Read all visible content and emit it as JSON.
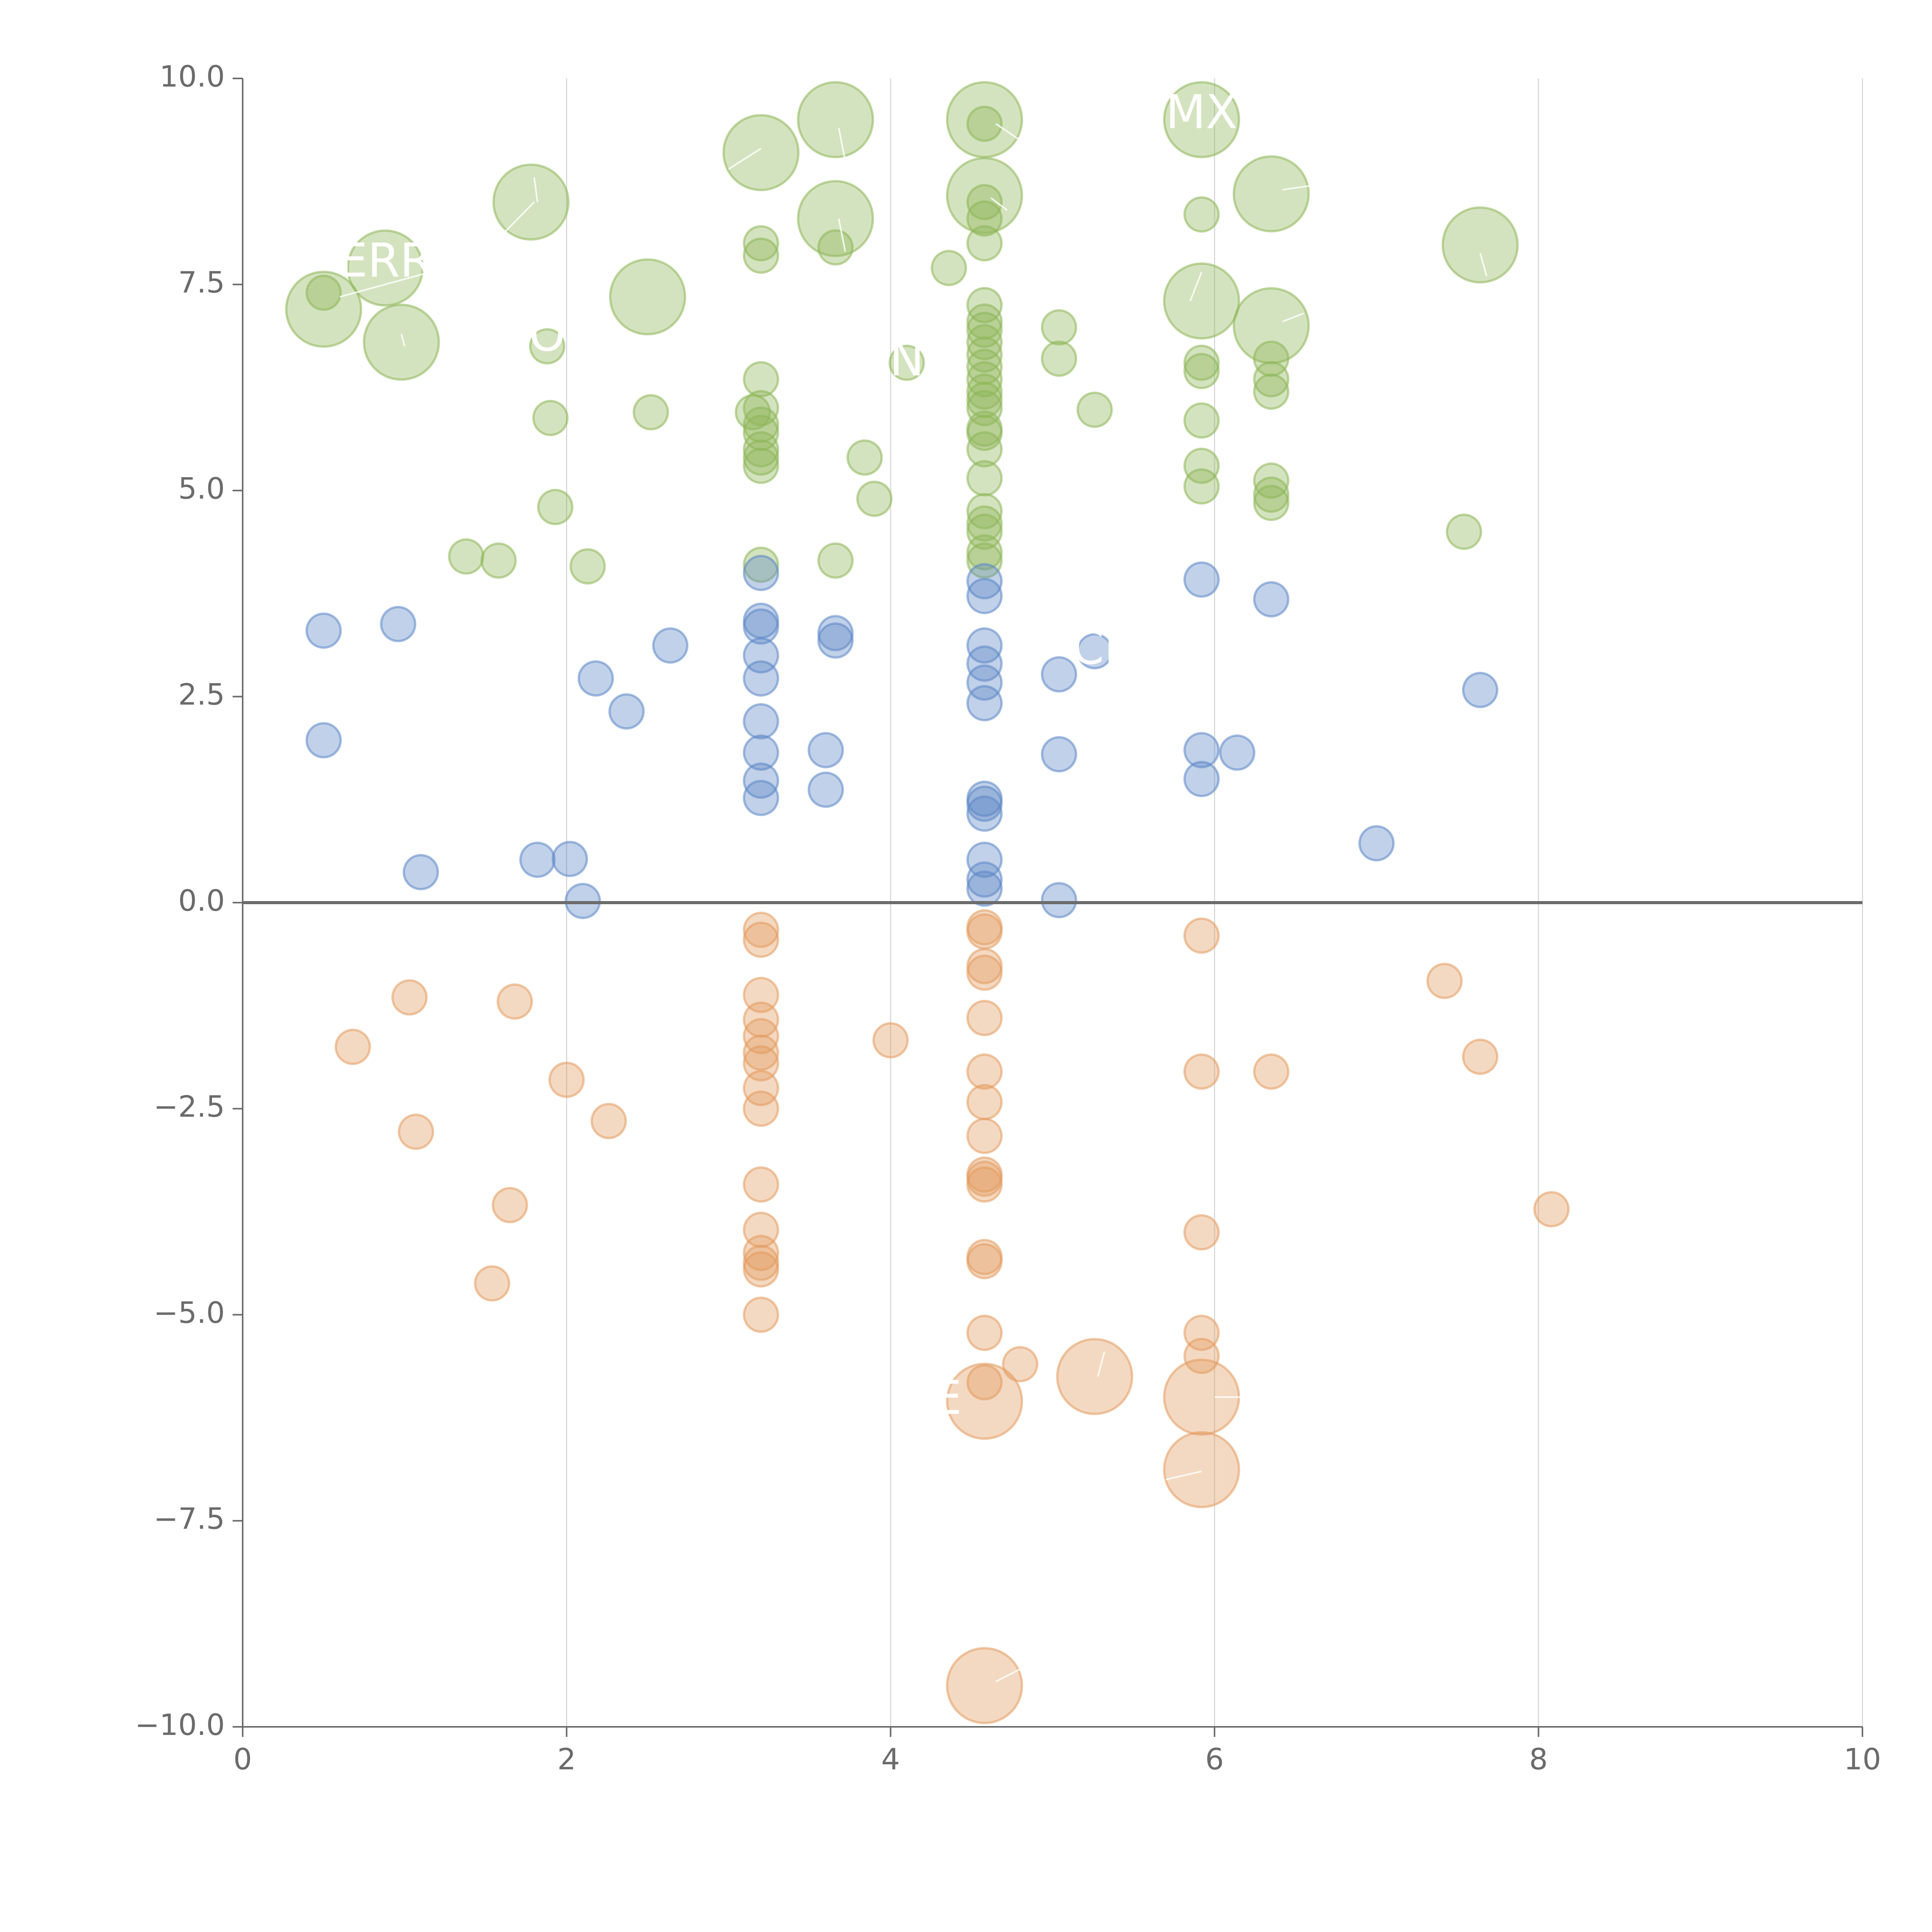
{
  "colors": {
    "positive_high": "#8db657",
    "positive_low": "#5b86c6",
    "negative": "#e39a5e",
    "axis": "#6b6b6b",
    "grid": "#d9d9d9",
    "label": "#ffffff"
  },
  "chart_data": {
    "type": "scatter",
    "title": "",
    "xlabel": "",
    "ylabel": "",
    "xlim": [
      0,
      10
    ],
    "ylim": [
      -10,
      10
    ],
    "x_ticks": [
      0,
      2,
      4,
      6,
      8,
      10
    ],
    "x_tick_labels": [
      "0",
      "2",
      "4",
      "6",
      "8",
      "10"
    ],
    "y_ticks": [
      10,
      7.5,
      5,
      2.5,
      0,
      -2.5,
      -5,
      -7.5,
      -10
    ],
    "y_tick_labels": [
      "10.0",
      "7.5",
      "5.0",
      "2.5",
      "0.0",
      "−2.5",
      "−5.0",
      "−7.5",
      "−10.0"
    ],
    "vertical_grid": true,
    "horizontal_grid": false,
    "zero_line": true,
    "bubble_sizes": {
      "small": 1,
      "large": 2.2
    },
    "series": [
      {
        "group": "positive_high",
        "points": [
          [
            0.5,
            7.2,
            2.2
          ],
          [
            0.5,
            7.4,
            1
          ],
          [
            0.88,
            7.7,
            2.2
          ],
          [
            0.98,
            6.8,
            2.2
          ],
          [
            1.38,
            4.2,
            1
          ],
          [
            1.58,
            4.15,
            1
          ],
          [
            1.78,
            8.5,
            2.2
          ],
          [
            1.88,
            6.75,
            1
          ],
          [
            1.9,
            5.88,
            1
          ],
          [
            1.93,
            4.8,
            1
          ],
          [
            2.13,
            4.08,
            1
          ],
          [
            2.5,
            7.35,
            2.2
          ],
          [
            2.52,
            5.95,
            1
          ],
          [
            3.2,
            9.1,
            2.2
          ],
          [
            3.2,
            8.0,
            1
          ],
          [
            3.2,
            7.85,
            1
          ],
          [
            3.2,
            6.35,
            1
          ],
          [
            3.2,
            6.0,
            1
          ],
          [
            3.15,
            5.95,
            1
          ],
          [
            3.2,
            5.8,
            1
          ],
          [
            3.2,
            5.7,
            1
          ],
          [
            3.2,
            5.5,
            1
          ],
          [
            3.2,
            5.4,
            1
          ],
          [
            3.2,
            5.3,
            1
          ],
          [
            3.2,
            4.1,
            1
          ],
          [
            3.66,
            9.5,
            2.2
          ],
          [
            3.66,
            8.3,
            2.2
          ],
          [
            3.66,
            7.95,
            1
          ],
          [
            3.66,
            4.15,
            1
          ],
          [
            3.84,
            5.4,
            1
          ],
          [
            3.9,
            4.9,
            1
          ],
          [
            4.1,
            6.55,
            1
          ],
          [
            4.36,
            7.7,
            1
          ],
          [
            4.58,
            9.5,
            2.2
          ],
          [
            4.58,
            9.45,
            1
          ],
          [
            4.58,
            8.58,
            2.2
          ],
          [
            4.58,
            8.5,
            1
          ],
          [
            4.58,
            8.3,
            1
          ],
          [
            4.58,
            8.0,
            1
          ],
          [
            4.58,
            7.25,
            1
          ],
          [
            4.58,
            7.05,
            1
          ],
          [
            4.58,
            6.95,
            1
          ],
          [
            4.58,
            6.8,
            1
          ],
          [
            4.58,
            6.65,
            1
          ],
          [
            4.58,
            6.5,
            1
          ],
          [
            4.58,
            6.35,
            1
          ],
          [
            4.58,
            6.2,
            1
          ],
          [
            4.58,
            6.1,
            1
          ],
          [
            4.58,
            6.0,
            1
          ],
          [
            4.58,
            5.75,
            1
          ],
          [
            4.58,
            5.7,
            1
          ],
          [
            4.58,
            5.5,
            1
          ],
          [
            4.58,
            5.15,
            1
          ],
          [
            4.58,
            4.75,
            1
          ],
          [
            4.58,
            4.6,
            1
          ],
          [
            4.58,
            4.5,
            1
          ],
          [
            4.58,
            4.25,
            1
          ],
          [
            4.58,
            4.15,
            1
          ],
          [
            5.04,
            6.98,
            1
          ],
          [
            5.04,
            6.6,
            1
          ],
          [
            5.26,
            5.98,
            1
          ],
          [
            5.92,
            9.5,
            2.2
          ],
          [
            5.92,
            8.35,
            1
          ],
          [
            5.92,
            7.3,
            2.2
          ],
          [
            5.92,
            6.55,
            1
          ],
          [
            5.92,
            6.45,
            1
          ],
          [
            5.92,
            5.85,
            1
          ],
          [
            5.92,
            5.3,
            1
          ],
          [
            5.92,
            5.05,
            1
          ],
          [
            6.35,
            8.6,
            2.2
          ],
          [
            6.35,
            7.0,
            2.2
          ],
          [
            6.35,
            6.6,
            1
          ],
          [
            6.35,
            6.35,
            1
          ],
          [
            6.35,
            6.2,
            1
          ],
          [
            6.35,
            5.12,
            1
          ],
          [
            6.35,
            4.95,
            1
          ],
          [
            6.35,
            4.85,
            1
          ],
          [
            7.54,
            4.5,
            1
          ],
          [
            7.64,
            7.98,
            2.2
          ]
        ]
      },
      {
        "group": "positive_low",
        "points": [
          [
            0.5,
            3.3,
            1
          ],
          [
            0.5,
            1.97,
            1
          ],
          [
            0.96,
            3.38,
            1
          ],
          [
            1.1,
            0.37,
            1
          ],
          [
            1.82,
            0.52,
            1
          ],
          [
            2.02,
            0.53,
            1
          ],
          [
            2.1,
            0.02,
            1
          ],
          [
            2.18,
            2.72,
            1
          ],
          [
            2.37,
            2.32,
            1
          ],
          [
            2.64,
            3.12,
            1
          ],
          [
            3.2,
            4.0,
            1
          ],
          [
            3.2,
            3.42,
            1
          ],
          [
            3.2,
            3.35,
            1
          ],
          [
            3.2,
            3.0,
            1
          ],
          [
            3.2,
            2.72,
            1
          ],
          [
            3.2,
            2.2,
            1
          ],
          [
            3.2,
            1.82,
            1
          ],
          [
            3.2,
            1.48,
            1
          ],
          [
            3.2,
            1.27,
            1
          ],
          [
            3.6,
            1.85,
            1
          ],
          [
            3.6,
            1.37,
            1
          ],
          [
            3.66,
            3.27,
            1
          ],
          [
            3.66,
            3.18,
            1
          ],
          [
            4.58,
            3.9,
            1
          ],
          [
            4.58,
            3.72,
            1
          ],
          [
            4.58,
            3.12,
            1
          ],
          [
            4.58,
            2.9,
            1
          ],
          [
            4.58,
            2.67,
            1
          ],
          [
            4.58,
            2.42,
            1
          ],
          [
            4.58,
            1.26,
            1
          ],
          [
            4.58,
            1.2,
            1
          ],
          [
            4.58,
            1.08,
            1
          ],
          [
            4.58,
            0.52,
            1
          ],
          [
            4.58,
            0.28,
            1
          ],
          [
            4.58,
            0.17,
            1
          ],
          [
            5.04,
            2.77,
            1
          ],
          [
            5.04,
            1.8,
            1
          ],
          [
            5.04,
            0.03,
            1
          ],
          [
            5.26,
            3.05,
            1
          ],
          [
            5.92,
            3.92,
            1
          ],
          [
            5.92,
            1.85,
            1
          ],
          [
            5.92,
            1.5,
            1
          ],
          [
            6.14,
            1.82,
            1
          ],
          [
            6.35,
            3.68,
            1
          ],
          [
            7.0,
            0.72,
            1
          ],
          [
            7.64,
            2.58,
            1
          ]
        ]
      },
      {
        "group": "negative",
        "points": [
          [
            0.68,
            -1.75,
            1
          ],
          [
            1.03,
            -1.15,
            1
          ],
          [
            1.07,
            -2.78,
            1
          ],
          [
            1.54,
            -4.62,
            1
          ],
          [
            1.65,
            -3.67,
            1
          ],
          [
            1.68,
            -1.2,
            1
          ],
          [
            2.0,
            -2.15,
            1
          ],
          [
            2.26,
            -2.65,
            1
          ],
          [
            3.2,
            -0.33,
            1
          ],
          [
            3.2,
            -0.45,
            1
          ],
          [
            3.2,
            -1.12,
            1
          ],
          [
            3.2,
            -1.42,
            1
          ],
          [
            3.2,
            -1.62,
            1
          ],
          [
            3.2,
            -1.82,
            1
          ],
          [
            3.2,
            -1.95,
            1
          ],
          [
            3.2,
            -2.25,
            1
          ],
          [
            3.2,
            -2.5,
            1
          ],
          [
            3.2,
            -3.42,
            1
          ],
          [
            3.2,
            -3.97,
            1
          ],
          [
            3.2,
            -4.25,
            1
          ],
          [
            3.2,
            -4.37,
            1
          ],
          [
            3.2,
            -4.45,
            1
          ],
          [
            3.2,
            -5.0,
            1
          ],
          [
            4.0,
            -1.67,
            1
          ],
          [
            4.58,
            -0.3,
            1
          ],
          [
            4.58,
            -0.35,
            1
          ],
          [
            4.58,
            -0.77,
            1
          ],
          [
            4.58,
            -0.85,
            1
          ],
          [
            4.58,
            -1.4,
            1
          ],
          [
            4.58,
            -2.05,
            1
          ],
          [
            4.58,
            -2.42,
            1
          ],
          [
            4.58,
            -2.83,
            1
          ],
          [
            4.58,
            -3.3,
            1
          ],
          [
            4.58,
            -3.35,
            1
          ],
          [
            4.58,
            -3.42,
            1
          ],
          [
            4.58,
            -4.3,
            1
          ],
          [
            4.58,
            -4.35,
            1
          ],
          [
            4.58,
            -5.22,
            1
          ],
          [
            4.58,
            -5.82,
            1
          ],
          [
            4.58,
            -6.05,
            2.2
          ],
          [
            4.58,
            -9.5,
            2.2
          ],
          [
            4.8,
            -5.6,
            1
          ],
          [
            5.26,
            -5.75,
            2.2
          ],
          [
            5.92,
            -0.4,
            1
          ],
          [
            5.92,
            -2.05,
            1
          ],
          [
            5.92,
            -4.0,
            1
          ],
          [
            5.92,
            -5.22,
            1
          ],
          [
            5.92,
            -5.5,
            1
          ],
          [
            5.92,
            -6.0,
            2.2
          ],
          [
            5.92,
            -6.88,
            2.2
          ],
          [
            6.35,
            -2.05,
            1
          ],
          [
            7.42,
            -0.95,
            1
          ],
          [
            7.64,
            -1.87,
            1
          ],
          [
            8.08,
            -3.72,
            1
          ]
        ]
      }
    ],
    "leaders": [
      [
        0.6,
        7.35,
        1.25,
        7.7
      ],
      [
        1.0,
        6.75,
        0.98,
        6.9
      ],
      [
        1.6,
        8.1,
        1.8,
        8.5
      ],
      [
        1.82,
        8.5,
        1.8,
        8.8
      ],
      [
        3.0,
        8.9,
        3.2,
        9.15
      ],
      [
        3.68,
        9.4,
        3.72,
        9.0
      ],
      [
        3.68,
        8.3,
        3.72,
        7.9
      ],
      [
        4.65,
        9.45,
        4.8,
        9.25
      ],
      [
        4.62,
        8.55,
        4.72,
        8.4
      ],
      [
        5.85,
        7.3,
        5.92,
        7.65
      ],
      [
        6.42,
        8.65,
        6.6,
        8.7
      ],
      [
        6.42,
        7.05,
        6.55,
        7.15
      ],
      [
        7.64,
        7.88,
        7.68,
        7.6
      ],
      [
        4.65,
        -9.45,
        4.8,
        -9.3
      ],
      [
        5.28,
        -5.75,
        5.32,
        -5.45
      ],
      [
        6.0,
        -6.0,
        6.2,
        -6.0
      ],
      [
        5.7,
        -7.0,
        5.92,
        -6.9
      ]
    ],
    "annotations": [
      {
        "text": "ERR",
        "x": 0.88,
        "y": 7.75
      },
      {
        "text": "MX",
        "x": 5.92,
        "y": 9.55
      },
      {
        "text": "CF",
        "x": 5.3,
        "y": 3.05
      },
      {
        "text": "O",
        "x": 1.88,
        "y": 6.85
      },
      {
        "text": "N",
        "x": 4.1,
        "y": 6.55
      },
      {
        "text": "E",
        "x": 4.35,
        "y": -6.05
      }
    ]
  }
}
